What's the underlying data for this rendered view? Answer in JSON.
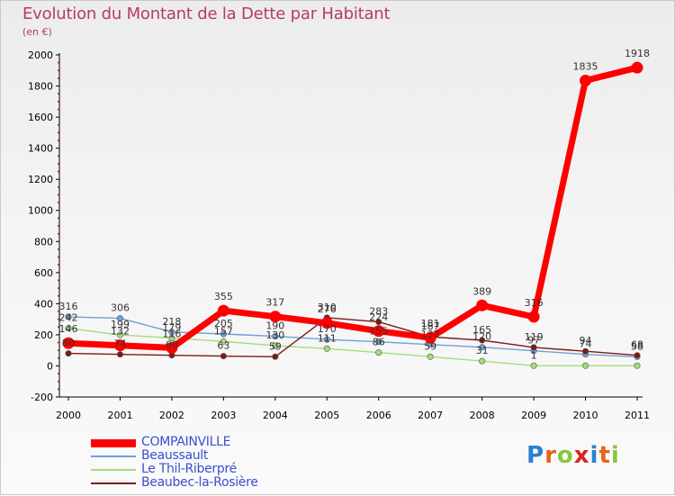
{
  "title": "Evolution du Montant de la Dette par Habitant",
  "subtitle": "(en €)",
  "logo": {
    "text": "Proxiti",
    "letters": [
      "P",
      "r",
      "o",
      "x",
      "i",
      "t",
      "i"
    ],
    "colors": [
      "#2d7fd3",
      "#e6631e",
      "#8cc63f",
      "#d7261e",
      "#2d7fd3",
      "#e6631e",
      "#8cc63f"
    ]
  },
  "chart_data": {
    "type": "line",
    "title": "Evolution du Montant de la Dette par Habitant",
    "subtitle": "(en €)",
    "x": [
      "2000",
      "2001",
      "2002",
      "2003",
      "2004",
      "2005",
      "2006",
      "2007",
      "2008",
      "2009",
      "2010",
      "2011"
    ],
    "ylim": [
      -200,
      2000
    ],
    "yticks": [
      -200,
      0,
      200,
      400,
      600,
      800,
      1000,
      1200,
      1400,
      1600,
      1800,
      2000
    ],
    "grid": false,
    "legend_position": "bottom-left",
    "series": [
      {
        "name": "COMPAINVILLE",
        "color": "#ff0000",
        "values": [
          146,
          132,
          116,
          355,
          317,
          276,
          224,
          181,
          389,
          316,
          1835,
          1918
        ],
        "labels": [
          "146",
          "132",
          "116",
          "355",
          "317",
          "276",
          "224",
          "181",
          "389",
          "316",
          "1835",
          "1918"
        ]
      },
      {
        "name": "Beaussault",
        "color": "#6fa0d8",
        "values": [
          316,
          306,
          218,
          205,
          190,
          170,
          155,
          137,
          120,
          97,
          74,
          58
        ],
        "labels": [
          "316",
          "306",
          "218",
          "205",
          "190",
          "170",
          "155",
          "137",
          "120",
          "97",
          "74",
          "58"
        ]
      },
      {
        "name": "Le Thil-Riberpré",
        "color": "#a6dd7c",
        "values": [
          242,
          199,
          179,
          157,
          130,
          111,
          86,
          59,
          31,
          1,
          1,
          1
        ],
        "labels": [
          "242",
          "199",
          "179",
          "157",
          "130",
          "111",
          "86",
          "59",
          "31",
          "1",
          "",
          ""
        ]
      },
      {
        "name": "Beaubec-la-Rosière",
        "color": "#7a1a1a",
        "values": [
          80,
          74,
          68,
          63,
          59,
          310,
          283,
          187,
          165,
          119,
          94,
          68
        ],
        "labels": [
          "80",
          "74",
          "68",
          "63",
          "59",
          "310",
          "283",
          "187",
          "165",
          "119",
          "94",
          "68"
        ]
      }
    ]
  }
}
